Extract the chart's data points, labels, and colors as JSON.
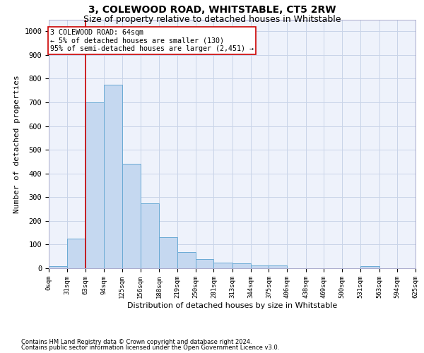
{
  "title": "3, COLEWOOD ROAD, WHITSTABLE, CT5 2RW",
  "subtitle": "Size of property relative to detached houses in Whitstable",
  "xlabel": "Distribution of detached houses by size in Whitstable",
  "ylabel": "Number of detached properties",
  "footer_line1": "Contains HM Land Registry data © Crown copyright and database right 2024.",
  "footer_line2": "Contains public sector information licensed under the Open Government Licence v3.0.",
  "bin_edges": [
    0,
    31,
    63,
    94,
    125,
    156,
    188,
    219,
    250,
    281,
    313,
    344,
    375,
    406,
    438,
    469,
    500,
    531,
    563,
    594,
    625
  ],
  "bar_heights": [
    8,
    125,
    700,
    775,
    440,
    275,
    130,
    70,
    40,
    25,
    22,
    12,
    12,
    0,
    0,
    0,
    0,
    10,
    0,
    0
  ],
  "bar_color": "#c5d8f0",
  "bar_edge_color": "#6aaad4",
  "vline_x": 63,
  "vline_color": "#cc0000",
  "annotation_text": "3 COLEWOOD ROAD: 64sqm\n← 5% of detached houses are smaller (130)\n95% of semi-detached houses are larger (2,451) →",
  "annotation_box_color": "#ffffff",
  "annotation_box_edge": "#cc0000",
  "ylim": [
    0,
    1050
  ],
  "yticks": [
    0,
    100,
    200,
    300,
    400,
    500,
    600,
    700,
    800,
    900,
    1000
  ],
  "grid_color": "#c8d4e8",
  "background_color": "#eef2fb",
  "title_fontsize": 10,
  "subtitle_fontsize": 9,
  "tick_labels": [
    "0sqm",
    "31sqm",
    "63sqm",
    "94sqm",
    "125sqm",
    "156sqm",
    "188sqm",
    "219sqm",
    "250sqm",
    "281sqm",
    "313sqm",
    "344sqm",
    "375sqm",
    "406sqm",
    "438sqm",
    "469sqm",
    "500sqm",
    "531sqm",
    "563sqm",
    "594sqm",
    "625sqm"
  ]
}
